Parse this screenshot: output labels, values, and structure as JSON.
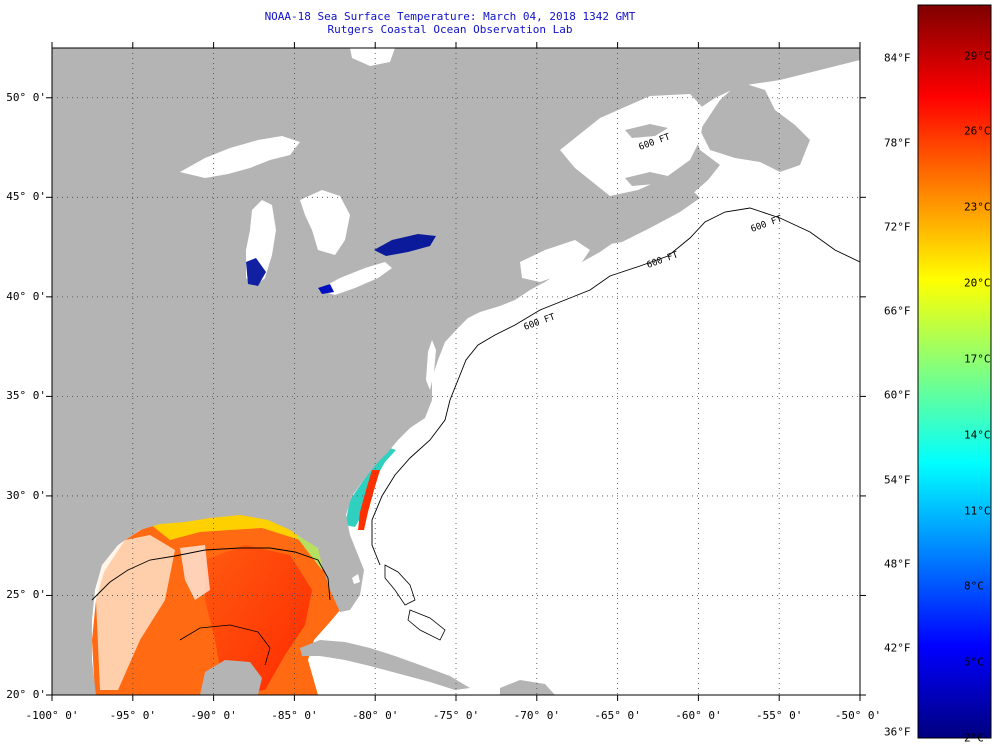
{
  "title": {
    "line1": "NOAA-18 Sea Surface Temperature:  March 04, 2018 1342 GMT",
    "line2": "Rutgers Coastal Ocean Observation Lab"
  },
  "map": {
    "lon_range": [
      -100,
      -50
    ],
    "lat_range": [
      20,
      52.5
    ],
    "land_color": "#b4b4b4",
    "cloud_color": "#ffffff",
    "grid": true,
    "lat_ticks": [
      {
        "value": 50,
        "label": "50° 0'"
      },
      {
        "value": 45,
        "label": "45° 0'"
      },
      {
        "value": 40,
        "label": "40° 0'"
      },
      {
        "value": 35,
        "label": "35° 0'"
      },
      {
        "value": 30,
        "label": "30° 0'"
      },
      {
        "value": 25,
        "label": "25° 0'"
      },
      {
        "value": 20,
        "label": "20° 0'"
      }
    ],
    "lon_ticks": [
      {
        "value": -100,
        "label": "-100° 0'"
      },
      {
        "value": -95,
        "label": "-95° 0'"
      },
      {
        "value": -90,
        "label": "-90° 0'"
      },
      {
        "value": -85,
        "label": "-85° 0'"
      },
      {
        "value": -80,
        "label": "-80° 0'"
      },
      {
        "value": -75,
        "label": "-75° 0'"
      },
      {
        "value": -70,
        "label": "-70° 0'"
      },
      {
        "value": -65,
        "label": "-65° 0'"
      },
      {
        "value": -60,
        "label": "-60° 0'"
      },
      {
        "value": -55,
        "label": "-55° 0'"
      },
      {
        "value": -50,
        "label": "-50° 0'"
      }
    ],
    "isobath_labels": [
      "600 FT",
      "600 FT",
      "600 FT",
      "600 FT"
    ]
  },
  "colorbar": {
    "fahrenheit_labels": [
      {
        "value": 84,
        "label": "84°F"
      },
      {
        "value": 78,
        "label": "78°F"
      },
      {
        "value": 72,
        "label": "72°F"
      },
      {
        "value": 66,
        "label": "66°F"
      },
      {
        "value": 60,
        "label": "60°F"
      },
      {
        "value": 54,
        "label": "54°F"
      },
      {
        "value": 48,
        "label": "48°F"
      },
      {
        "value": 42,
        "label": "42°F"
      },
      {
        "value": 36,
        "label": "36°F"
      }
    ],
    "celsius_labels": [
      {
        "value": 29,
        "label": "29°C"
      },
      {
        "value": 26,
        "label": "26°C"
      },
      {
        "value": 23,
        "label": "23°C"
      },
      {
        "value": 20,
        "label": "20°C"
      },
      {
        "value": 17,
        "label": "17°C"
      },
      {
        "value": 14,
        "label": "14°C"
      },
      {
        "value": 11,
        "label": "11°C"
      },
      {
        "value": 8,
        "label": "8°C"
      },
      {
        "value": 5,
        "label": "5°C"
      },
      {
        "value": 2,
        "label": "2°C"
      }
    ],
    "celsius_range": [
      2,
      31
    ],
    "stops": [
      "#00007f",
      "#0000ff",
      "#0080ff",
      "#00ffff",
      "#80ff80",
      "#ffff00",
      "#ff8000",
      "#ff0000",
      "#7f0000"
    ]
  }
}
